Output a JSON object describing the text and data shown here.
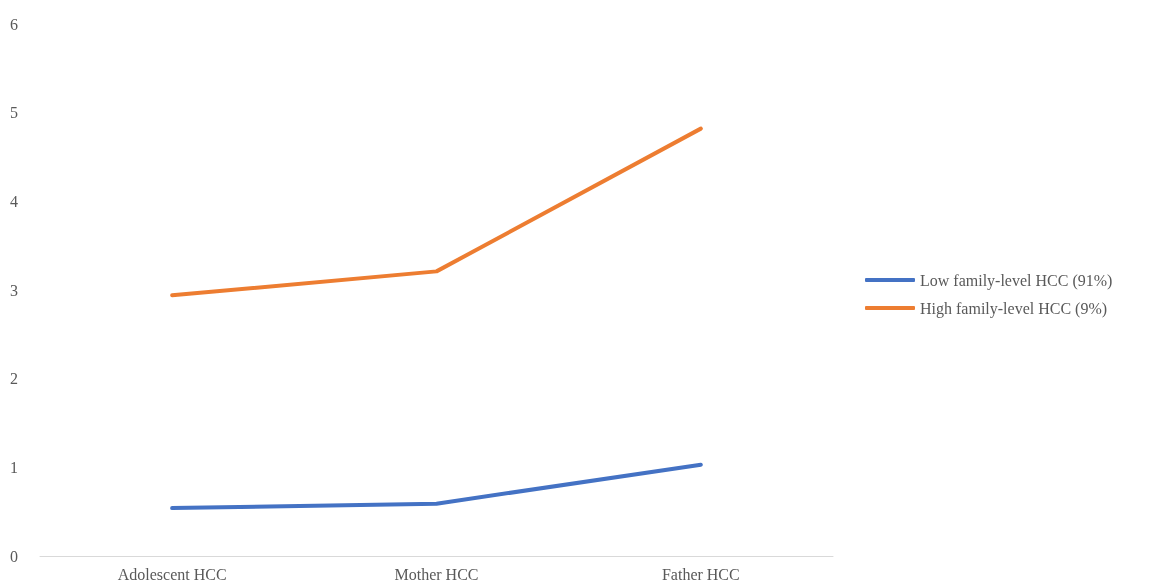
{
  "chart_data": {
    "type": "line",
    "categories": [
      "Adolescent HCC",
      "Mother HCC",
      "Father HCC"
    ],
    "series": [
      {
        "name": "Low family-level HCC (91%)",
        "color": "#4472c4",
        "values": [
          0.54,
          0.59,
          1.03
        ]
      },
      {
        "name": "High family-level HCC (9%)",
        "color": "#ed7d31",
        "values": [
          2.94,
          3.21,
          4.82
        ]
      }
    ],
    "ylim": [
      0,
      6
    ],
    "yticks": [
      0,
      1,
      2,
      3,
      4,
      5,
      6
    ],
    "grid": false,
    "legend": "right",
    "marker": "none",
    "line_style": "solid"
  }
}
